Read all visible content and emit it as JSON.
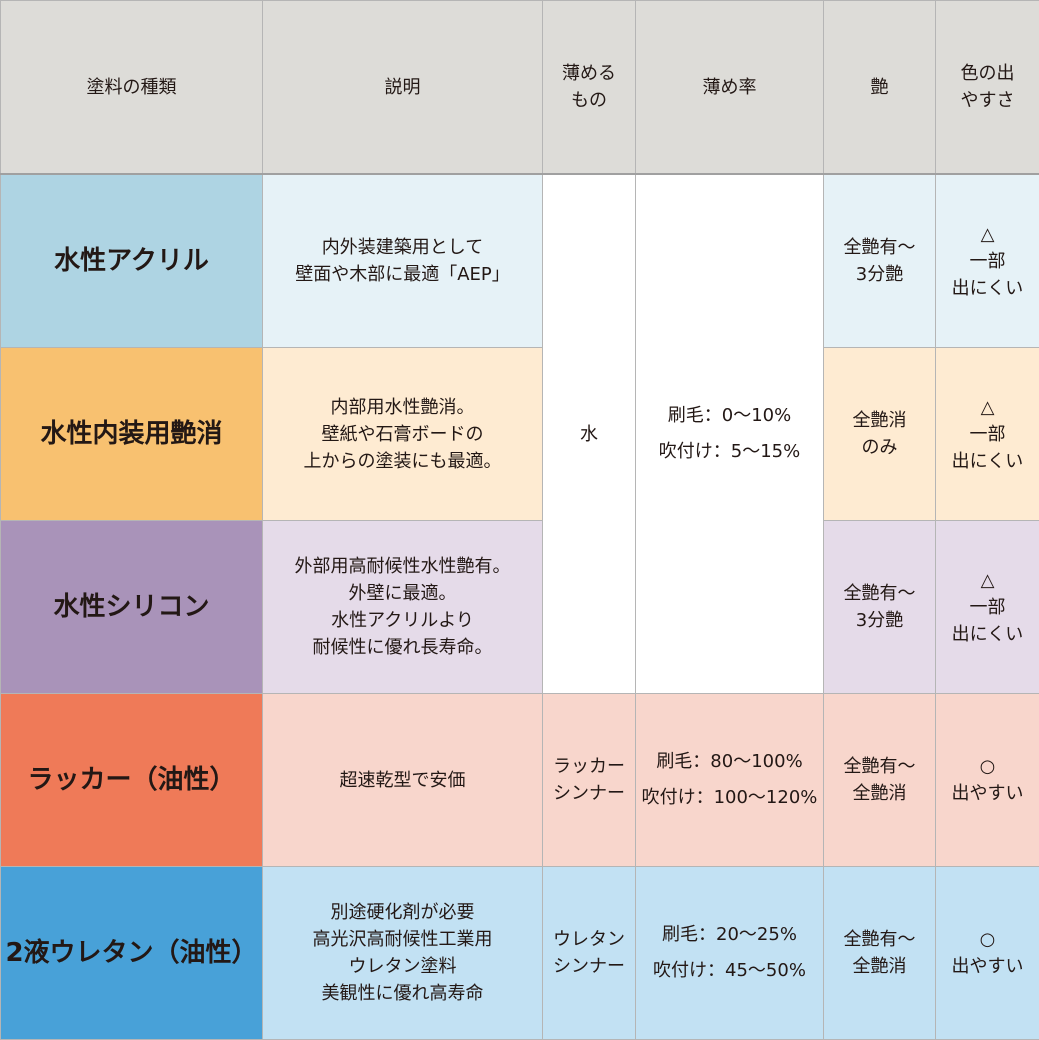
{
  "headers": [
    "塗料の種類",
    "説明",
    "薄めるもの",
    "薄め率",
    "艶",
    "色の出やすさ"
  ],
  "headers_display": [
    "塗料の種類",
    "説明",
    "薄める\nもの",
    "薄め率",
    "艶",
    "色の出\nやすさ"
  ],
  "shared": {
    "thinner": "水",
    "ratio": "刷毛：0〜10%\n吹付け：5〜15%"
  },
  "rows": [
    {
      "name": "水性アクリル",
      "description": "内外装建築用として\n壁面や木部に最適「AEP」",
      "gloss": "全艶有〜\n3分艶",
      "color_ease": "△\n一部\n出にくい",
      "name_color": "#aed4e3",
      "cell_color": "#e6f2f7"
    },
    {
      "name": "水性内装用艶消",
      "description": "内部用水性艶消。\n壁紙や石膏ボードの\n上からの塗装にも最適。",
      "gloss": "全艶消\nのみ",
      "color_ease": "△\n一部\n出にくい",
      "name_color": "#f8c170",
      "cell_color": "#feebd2"
    },
    {
      "name": "水性シリコン",
      "description": "外部用高耐候性水性艶有。\n外壁に最適。\n水性アクリルより\n耐候性に優れ長寿命。",
      "gloss": "全艶有〜\n3分艶",
      "color_ease": "△\n一部\n出にくい",
      "name_color": "#a993b9",
      "cell_color": "#e5dbe9"
    },
    {
      "name": "ラッカー（油性）",
      "description": "超速乾型で安価",
      "thinner": "ラッカー\nシンナー",
      "ratio": "刷毛：80〜100%\n吹付け：100〜120%",
      "gloss": "全艶有〜\n全艶消",
      "color_ease": "○\n出やすい",
      "name_color": "#ef7a58",
      "cell_color": "#f8d6cc"
    },
    {
      "name": "2液ウレタン（油性）",
      "description": "別途硬化剤が必要\n高光沢高耐候性工業用\nウレタン塗料\n美観性に優れ高寿命",
      "thinner": "ウレタン\nシンナー",
      "ratio": "刷毛：20〜25%\n吹付け：45〜50%",
      "gloss": "全艶有〜\n全艶消",
      "color_ease": "○\n出やすい",
      "name_color": "#48a1d8",
      "cell_color": "#c2e1f3"
    }
  ]
}
